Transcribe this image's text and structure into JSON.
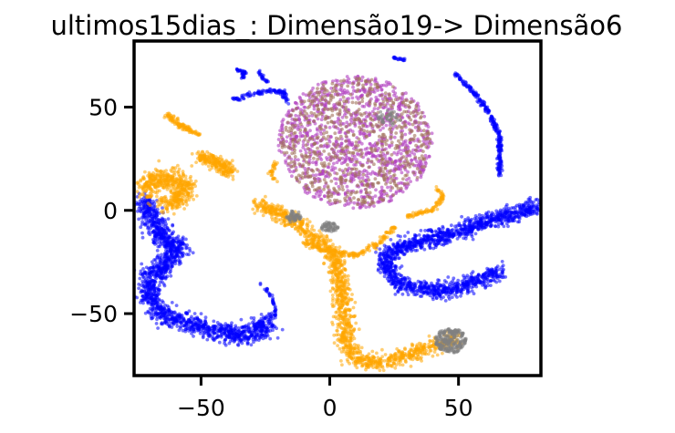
{
  "chart_data": {
    "type": "scatter",
    "title": "ultimos15dias_: Dimensão19-> Dimensão6",
    "xlabel": "",
    "ylabel": "",
    "xlim": [
      -76,
      82
    ],
    "ylim": [
      -80,
      82
    ],
    "xticks": [
      -50,
      0,
      50
    ],
    "xtick_labels": [
      "−50",
      "0",
      "50"
    ],
    "yticks": [
      -50,
      0,
      50
    ],
    "ytick_labels": [
      "−50",
      "0",
      "50"
    ],
    "grid": false,
    "legend": "none",
    "colors": {
      "blue": "#0000ff",
      "orange": "#ffa500",
      "gray": "#808080",
      "purple": "#b040c0",
      "brown": "#a0705a"
    },
    "clusters": [
      {
        "color": "purple",
        "shape": "blob",
        "cx": 10,
        "cy": 33,
        "rx": 30,
        "ry": 32,
        "n": 1100
      },
      {
        "color": "brown",
        "shape": "blob",
        "cx": 10,
        "cy": 33,
        "rx": 29,
        "ry": 31,
        "n": 700
      },
      {
        "color": "blue",
        "shape": "band",
        "path": [
          [
            -72,
            5
          ],
          [
            -69,
            -5
          ],
          [
            -64,
            -14
          ],
          [
            -59,
            -18
          ],
          [
            -63,
            -25
          ],
          [
            -70,
            -33
          ],
          [
            -70,
            -43
          ],
          [
            -65,
            -50
          ],
          [
            -56,
            -54
          ],
          [
            -46,
            -58
          ],
          [
            -34,
            -61
          ],
          [
            -26,
            -57
          ],
          [
            -24,
            -52
          ]
        ],
        "width": 4.5,
        "n": 1600
      },
      {
        "color": "blue",
        "shape": "band",
        "path": [
          [
            82,
            3
          ],
          [
            74,
            -1
          ],
          [
            64,
            -4
          ],
          [
            53,
            -9
          ],
          [
            40,
            -14
          ],
          [
            28,
            -17
          ],
          [
            22,
            -22
          ],
          [
            22,
            -29
          ],
          [
            28,
            -36
          ],
          [
            40,
            -39
          ],
          [
            52,
            -37
          ],
          [
            67,
            -29
          ]
        ],
        "width": 3.8,
        "n": 1500
      },
      {
        "color": "blue",
        "shape": "band",
        "path": [
          [
            49,
            66
          ],
          [
            56,
            57
          ],
          [
            62,
            47
          ],
          [
            66,
            36
          ],
          [
            66,
            26
          ],
          [
            66,
            17
          ]
        ],
        "width": 0.9,
        "n": 260
      },
      {
        "color": "blue",
        "shape": "band",
        "path": [
          [
            -38,
            54
          ],
          [
            -35,
            54
          ],
          [
            -31,
            56
          ],
          [
            -23,
            58
          ],
          [
            -18,
            57
          ],
          [
            -16,
            51
          ]
        ],
        "width": 0.9,
        "n": 110
      },
      {
        "color": "blue",
        "shape": "band",
        "path": [
          [
            -36,
            68
          ],
          [
            -33,
            67
          ],
          [
            -34,
            64
          ]
        ],
        "width": 0.8,
        "n": 40
      },
      {
        "color": "blue",
        "shape": "band",
        "path": [
          [
            -28,
            68
          ],
          [
            -26,
            64
          ],
          [
            -24,
            62
          ]
        ],
        "width": 0.6,
        "n": 25
      },
      {
        "color": "blue",
        "shape": "band",
        "path": [
          [
            -28,
            -34
          ],
          [
            -23,
            -41
          ],
          [
            -21,
            -47
          ],
          [
            -21,
            -53
          ]
        ],
        "width": 0.6,
        "n": 40
      },
      {
        "color": "blue",
        "shape": "band",
        "path": [
          [
            25,
            74
          ],
          [
            28,
            73
          ],
          [
            29,
            73
          ]
        ],
        "width": 0.5,
        "n": 20
      },
      {
        "color": "orange",
        "shape": "band",
        "path": [
          [
            -28,
            3
          ],
          [
            -17,
            -3
          ],
          [
            -10,
            -9
          ],
          [
            -3,
            -16
          ],
          [
            2,
            -22
          ],
          [
            3,
            -32
          ],
          [
            5,
            -42
          ],
          [
            6,
            -54
          ],
          [
            6,
            -64
          ],
          [
            10,
            -72
          ],
          [
            20,
            -74
          ],
          [
            30,
            -70
          ],
          [
            40,
            -66
          ],
          [
            49,
            -62
          ]
        ],
        "width": 3.6,
        "n": 1300
      },
      {
        "color": "orange",
        "shape": "band",
        "path": [
          [
            -72,
            8
          ],
          [
            -68,
            15
          ],
          [
            -62,
            16
          ],
          [
            -56,
            12
          ],
          [
            -58,
            6
          ],
          [
            -64,
            3
          ]
        ],
        "width": 4.5,
        "n": 500
      },
      {
        "color": "orange",
        "shape": "band",
        "path": [
          [
            -50,
            26
          ],
          [
            -42,
            22
          ],
          [
            -38,
            18
          ]
        ],
        "width": 3.2,
        "n": 230
      },
      {
        "color": "orange",
        "shape": "band",
        "path": [
          [
            -63,
            46
          ],
          [
            -58,
            41
          ],
          [
            -51,
            37
          ]
        ],
        "width": 1.3,
        "n": 110
      },
      {
        "color": "orange",
        "shape": "band",
        "path": [
          [
            -10,
            -16
          ],
          [
            0,
            -20
          ],
          [
            10,
            -22
          ],
          [
            20,
            -15
          ],
          [
            25,
            -8
          ]
        ],
        "width": 1.3,
        "n": 170
      },
      {
        "color": "orange",
        "shape": "band",
        "path": [
          [
            30,
            -3
          ],
          [
            40,
            0
          ],
          [
            44,
            6
          ],
          [
            41,
            11
          ]
        ],
        "width": 0.9,
        "n": 90
      },
      {
        "color": "orange",
        "shape": "band",
        "path": [
          [
            -21,
            23
          ],
          [
            -23,
            18
          ],
          [
            -21,
            14
          ]
        ],
        "width": 0.8,
        "n": 30
      },
      {
        "color": "gray",
        "shape": "blob",
        "cx": 47,
        "cy": -63,
        "rx": 6,
        "ry": 6,
        "n": 220
      },
      {
        "color": "gray",
        "shape": "blob",
        "cx": -14,
        "cy": -3,
        "rx": 3,
        "ry": 3,
        "n": 50
      },
      {
        "color": "gray",
        "shape": "blob",
        "cx": 0,
        "cy": -8,
        "rx": 3.5,
        "ry": 2.5,
        "n": 55
      },
      {
        "color": "gray",
        "shape": "blob",
        "cx": 23,
        "cy": 45,
        "rx": 5,
        "ry": 4,
        "n": 40
      }
    ]
  }
}
